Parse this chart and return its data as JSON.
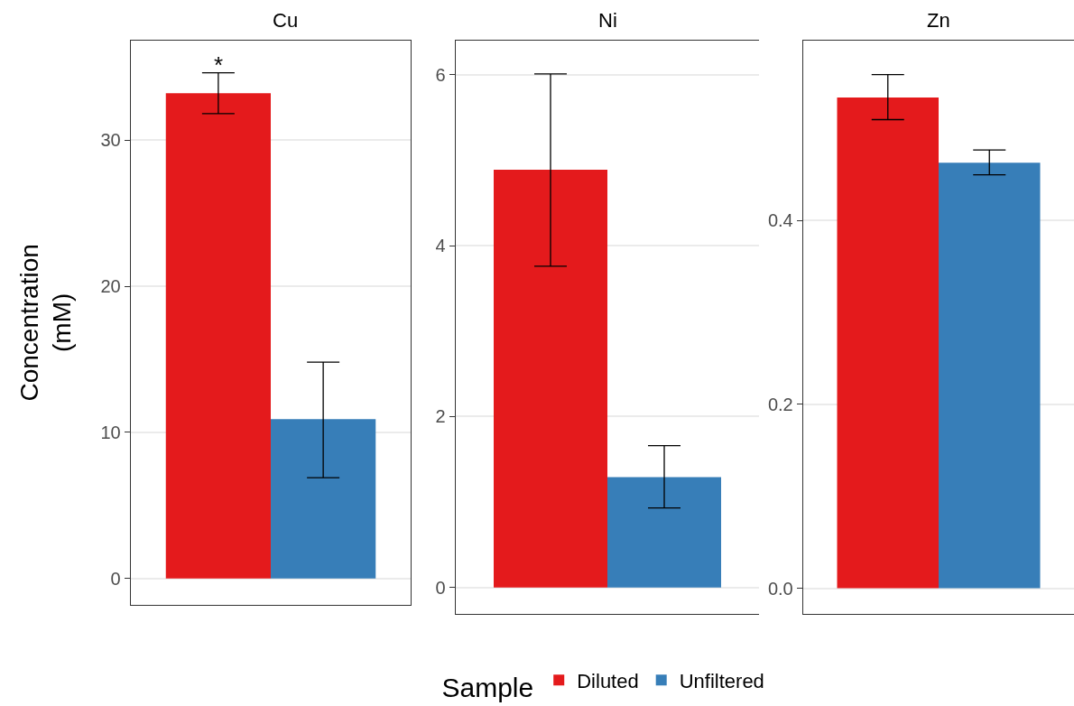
{
  "chart_data": [
    {
      "type": "bar",
      "title": "Cu",
      "ylabel": "Concentration\n(mM)",
      "legend_title": "Sample",
      "legend": "bottom",
      "grid": true,
      "tick_labels": "y",
      "categories": [
        null
      ],
      "ylim": [
        -1.8,
        36.8
      ],
      "yticks": [
        0,
        10,
        20,
        30
      ],
      "series": [
        {
          "name": "Diluted",
          "color": "#e41a1c",
          "values": [
            33.2
          ],
          "errors": [
            [
              31.8,
              34.6
            ]
          ]
        },
        {
          "name": "Unfiltered",
          "color": "#377eb8",
          "values": [
            10.9
          ],
          "errors": [
            [
              6.9,
              14.8
            ]
          ]
        }
      ],
      "annotations": [
        {
          "text": "*",
          "y": 34.6
        }
      ]
    },
    {
      "type": "bar",
      "title": "Ni",
      "grid": true,
      "tick_labels": "y",
      "categories": [
        null
      ],
      "ylim": [
        -0.31,
        6.4
      ],
      "yticks": [
        0,
        2,
        4,
        6
      ],
      "series": [
        {
          "color": "#e41a1c",
          "values": [
            4.89
          ],
          "errors": [
            [
              3.76,
              6.01
            ]
          ]
        },
        {
          "color": "#377eb8",
          "values": [
            1.29
          ],
          "errors": [
            [
              0.93,
              1.66
            ]
          ]
        }
      ]
    },
    {
      "type": "bar",
      "title": "Zn",
      "grid": true,
      "tick_labels": "y",
      "categories": [
        null
      ],
      "ylim": [
        -0.028,
        0.596
      ],
      "yticks": [
        {
          "value": 0,
          "label": "0.0"
        },
        {
          "value": 0.2,
          "label": "0.2"
        },
        {
          "value": 0.4,
          "label": "0.4"
        }
      ],
      "series": [
        {
          "color": "#e41a1c",
          "values": [
            0.534
          ],
          "errors": [
            [
              0.51,
              0.559
            ]
          ]
        },
        {
          "color": "#377eb8",
          "values": [
            0.463
          ],
          "errors": [
            [
              0.45,
              0.477
            ]
          ]
        }
      ]
    }
  ]
}
